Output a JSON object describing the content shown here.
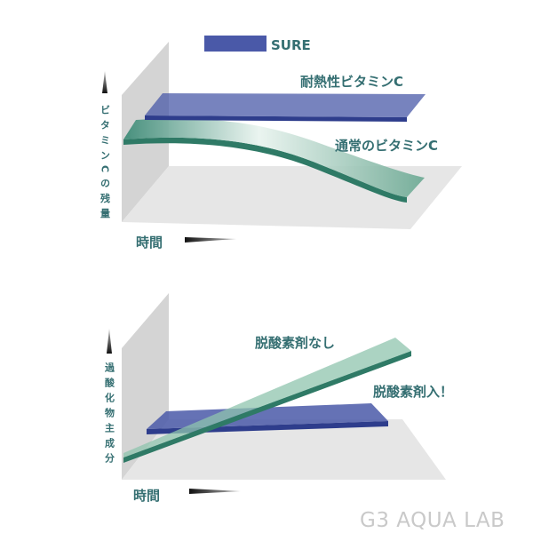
{
  "colors": {
    "stable": "#4a59a8",
    "normal": "#3f8c78",
    "text": "#356f72",
    "wall": "#d6d6d6",
    "floor": "#e4e4e4"
  },
  "top_chart": {
    "legend": "SURE",
    "y_axis_label": "ビタミンCの残量",
    "x_axis_label": "時間",
    "series_stable_label": "耐熱性ビタミンC",
    "series_normal_label": "通常のビタミンC"
  },
  "bottom_chart": {
    "y_axis_label": "過酸化物主成分",
    "x_axis_label": "時間",
    "series_without_label": "脱酸素剤なし",
    "series_with_label": "脱酸素剤入！"
  },
  "watermark": "G3 AQUA LAB"
}
